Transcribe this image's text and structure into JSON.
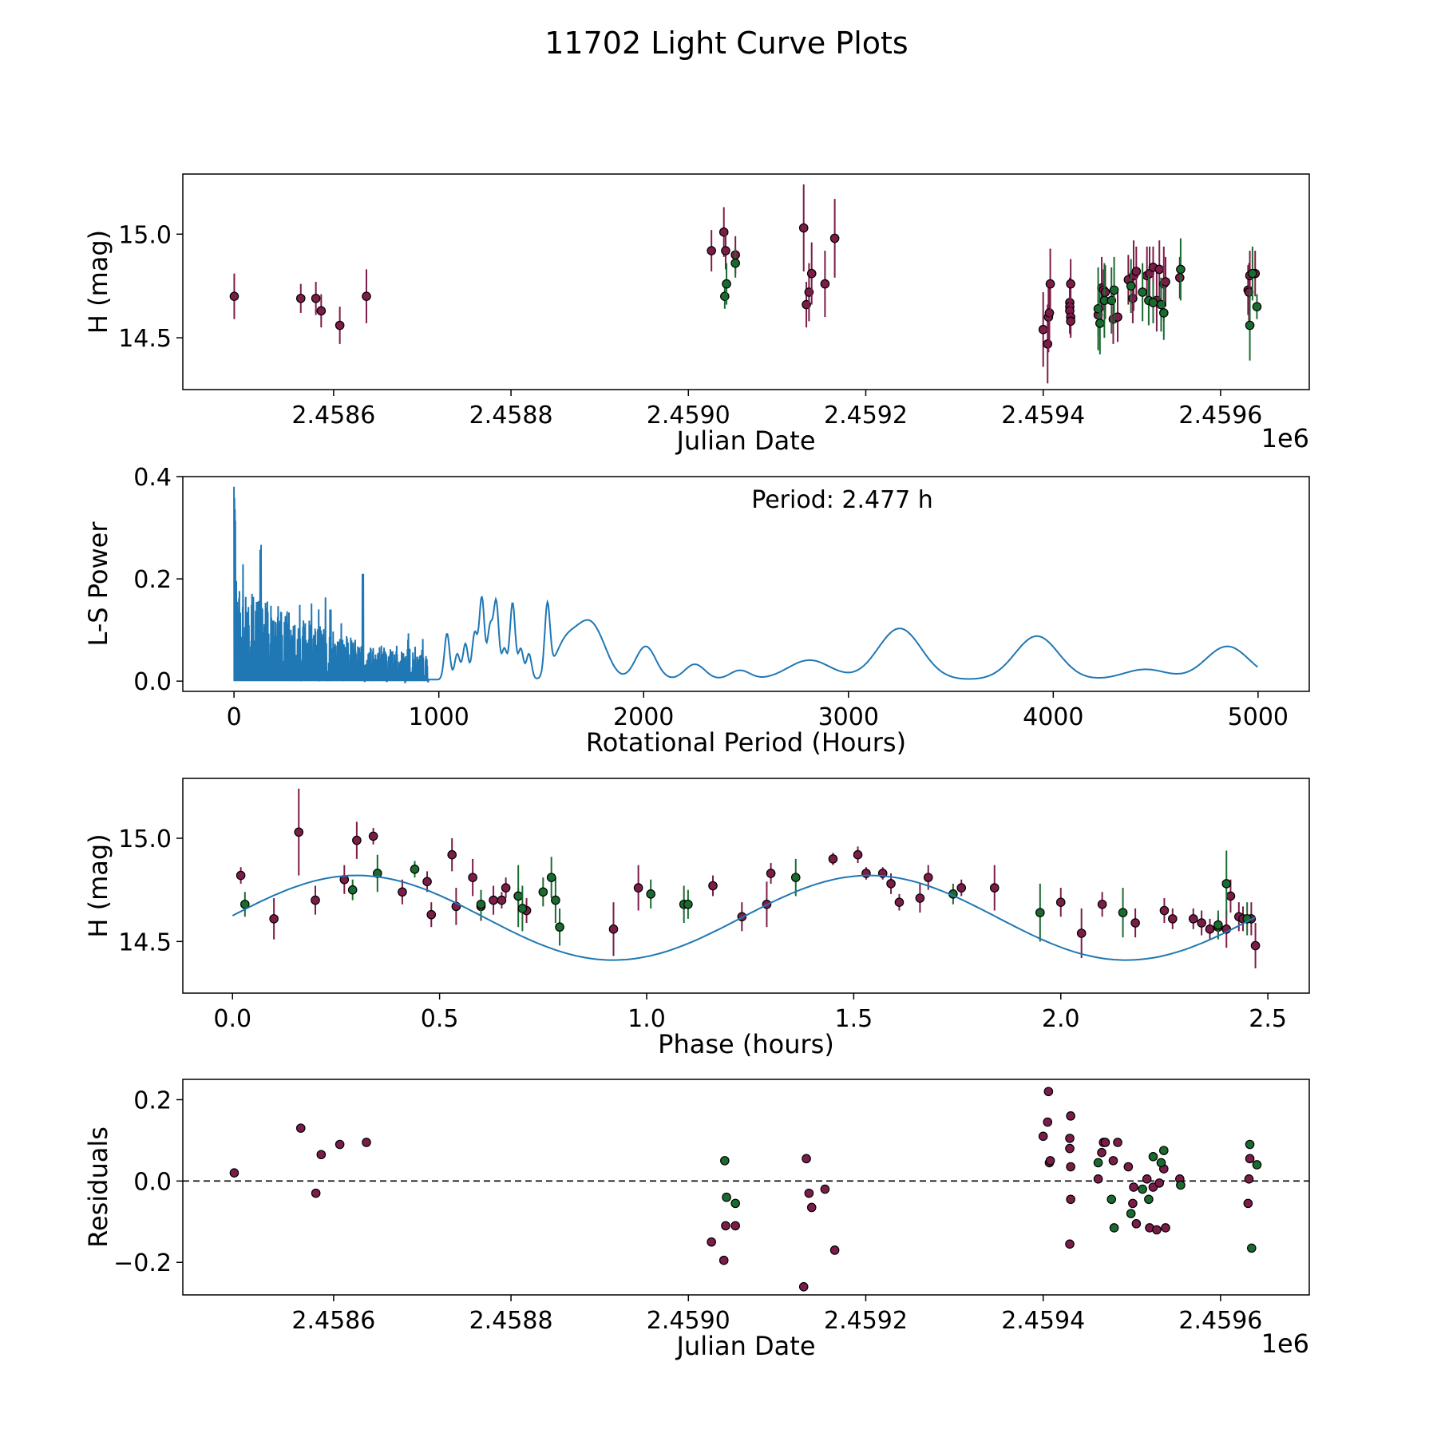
{
  "figure_title": "11702 Light Curve Plots",
  "colors": {
    "observed": "#7b1d48",
    "alt_observed": "#1a6b30",
    "model": "#1f77b4",
    "edge": "#000000",
    "zero_line": "#000000"
  },
  "chart_data": [
    {
      "id": "lightcurve",
      "type": "scatter",
      "xlabel": "Julian Date",
      "ylabel": "H (mag)",
      "x_offset_label": "1e6",
      "xlim": [
        2.45843,
        2.4597
      ],
      "ylim": [
        14.25,
        15.29
      ],
      "xticks": [
        2.4586,
        2.4588,
        2.459,
        2.4592,
        2.4594,
        2.4596
      ],
      "xtick_labels": [
        "2.4586",
        "2.4588",
        "2.4590",
        "2.4592",
        "2.4594",
        "2.4596"
      ],
      "yticks": [
        14.5,
        15.0
      ],
      "ytick_labels": [
        "14.5",
        "15.0"
      ],
      "series": [
        {
          "name": "observed",
          "color_key": "observed",
          "x": [
            2.458488,
            2.458563,
            2.45858,
            2.458586,
            2.458607,
            2.458637,
            2.459026,
            2.45904,
            2.459042,
            2.459053,
            2.45913,
            2.459133,
            2.459136,
            2.459139,
            2.459154,
            2.459165,
            2.4594,
            2.459405,
            2.459406,
            2.459407,
            2.459408,
            2.45943,
            2.45943,
            2.45943,
            2.459431,
            2.459431,
            2.459431,
            2.459462,
            2.459466,
            2.459468,
            2.45947,
            2.459479,
            2.459484,
            2.459496,
            2.459501,
            2.459502,
            2.459505,
            2.459517,
            2.45952,
            2.459524,
            2.459528,
            2.459531,
            2.459536,
            2.459538,
            2.459554,
            2.459631,
            2.459632,
            2.459633,
            2.459639
          ],
          "y": [
            14.7,
            14.69,
            14.69,
            14.63,
            14.56,
            14.7,
            14.92,
            15.01,
            14.92,
            14.9,
            15.03,
            14.66,
            14.72,
            14.81,
            14.76,
            14.98,
            14.54,
            14.47,
            14.6,
            14.62,
            14.76,
            14.67,
            14.65,
            14.63,
            14.6,
            14.58,
            14.76,
            14.61,
            14.74,
            14.73,
            14.72,
            14.59,
            14.6,
            14.78,
            14.69,
            14.8,
            14.82,
            14.8,
            14.81,
            14.84,
            14.68,
            14.83,
            14.76,
            14.77,
            14.79,
            14.73,
            14.72,
            14.8,
            14.81
          ],
          "err": [
            0.11,
            0.07,
            0.08,
            0.08,
            0.09,
            0.13,
            0.1,
            0.12,
            0.09,
            0.09,
            0.21,
            0.11,
            0.14,
            0.15,
            0.16,
            0.19,
            0.18,
            0.19,
            0.17,
            0.14,
            0.17,
            0.12,
            0.11,
            0.11,
            0.09,
            0.08,
            0.12,
            0.1,
            0.15,
            0.1,
            0.13,
            0.12,
            0.12,
            0.12,
            0.12,
            0.17,
            0.12,
            0.14,
            0.13,
            0.1,
            0.15,
            0.14,
            0.18,
            0.12,
            0.1,
            0.12,
            0.14,
            0.12,
            0.11
          ]
        },
        {
          "name": "alt_observed",
          "color_key": "alt_observed",
          "x": [
            2.459041,
            2.459043,
            2.459053,
            2.459462,
            2.459464,
            2.459469,
            2.459477,
            2.45948,
            2.459499,
            2.459512,
            2.459519,
            2.459524,
            2.459533,
            2.459536,
            2.459555,
            2.459633,
            2.459636,
            2.459641
          ],
          "y": [
            14.7,
            14.76,
            14.86,
            14.64,
            14.57,
            14.68,
            14.68,
            14.73,
            14.75,
            14.72,
            14.68,
            14.67,
            14.66,
            14.62,
            14.83,
            14.56,
            14.81,
            14.65
          ],
          "err": [
            0.06,
            0.1,
            0.07,
            0.2,
            0.15,
            0.18,
            0.16,
            0.16,
            0.13,
            0.14,
            0.12,
            0.1,
            0.13,
            0.13,
            0.15,
            0.17,
            0.13,
            0.06
          ]
        }
      ]
    },
    {
      "id": "periodogram",
      "type": "line",
      "xlabel": "Rotational Period (Hours)",
      "ylabel": "L-S Power",
      "annotation": "Period: 2.477 h",
      "xlim": [
        -250,
        5250
      ],
      "ylim": [
        -0.02,
        0.4
      ],
      "xticks": [
        0,
        1000,
        2000,
        3000,
        4000,
        5000
      ],
      "xtick_labels": [
        "0",
        "1000",
        "2000",
        "3000",
        "4000",
        "5000"
      ],
      "yticks": [
        0.0,
        0.2,
        0.4
      ],
      "ytick_labels": [
        "0.0",
        "0.2",
        "0.4"
      ],
      "peaks": [
        [
          1040,
          0.09
        ],
        [
          1090,
          0.05
        ],
        [
          1130,
          0.07
        ],
        [
          1175,
          0.09
        ],
        [
          1210,
          0.16
        ],
        [
          1250,
          0.1
        ],
        [
          1280,
          0.15
        ],
        [
          1320,
          0.06
        ],
        [
          1360,
          0.15
        ],
        [
          1400,
          0.06
        ],
        [
          1440,
          0.05
        ],
        [
          1530,
          0.135
        ],
        [
          1610,
          0.06
        ],
        [
          1680,
          0.05
        ],
        [
          1740,
          0.07
        ],
        [
          1800,
          0.04
        ],
        [
          2010,
          0.065
        ],
        [
          2250,
          0.03
        ],
        [
          2470,
          0.018
        ],
        [
          2810,
          0.038
        ],
        [
          3250,
          0.1
        ],
        [
          3920,
          0.085
        ],
        [
          4450,
          0.02
        ],
        [
          4850,
          0.065
        ]
      ]
    },
    {
      "id": "phased",
      "type": "scatter",
      "xlabel": "Phase (hours)",
      "ylabel": "H (mag)",
      "xlim": [
        -0.12,
        2.6
      ],
      "ylim": [
        14.25,
        15.29
      ],
      "xticks": [
        0.0,
        0.5,
        1.0,
        1.5,
        2.0,
        2.5
      ],
      "xtick_labels": [
        "0.0",
        "0.5",
        "1.0",
        "1.5",
        "2.0",
        "2.5"
      ],
      "yticks": [
        14.5,
        15.0
      ],
      "ytick_labels": [
        "14.5",
        "15.0"
      ],
      "model": {
        "period": 2.477,
        "mean": 14.615,
        "amplitude": 0.205,
        "phase0": 0.3
      },
      "series": [
        {
          "name": "observed",
          "color_key": "observed",
          "x": [
            0.02,
            0.1,
            0.16,
            0.2,
            0.27,
            0.3,
            0.34,
            0.41,
            0.47,
            0.48,
            0.53,
            0.54,
            0.58,
            0.6,
            0.63,
            0.65,
            0.66,
            0.69,
            0.71,
            0.92,
            0.98,
            1.16,
            1.23,
            1.29,
            1.3,
            1.45,
            1.51,
            1.53,
            1.57,
            1.59,
            1.61,
            1.66,
            1.68,
            1.76,
            1.84,
            2.0,
            2.05,
            2.1,
            2.18,
            2.25,
            2.27,
            2.32,
            2.34,
            2.36,
            2.38,
            2.4,
            2.41,
            2.43,
            2.44,
            2.46,
            2.47
          ],
          "y": [
            14.82,
            14.61,
            15.03,
            14.7,
            14.8,
            14.99,
            15.01,
            14.74,
            14.79,
            14.63,
            14.92,
            14.67,
            14.81,
            14.67,
            14.7,
            14.7,
            14.76,
            14.72,
            14.65,
            14.56,
            14.76,
            14.77,
            14.62,
            14.68,
            14.83,
            14.9,
            14.92,
            14.83,
            14.83,
            14.78,
            14.69,
            14.71,
            14.81,
            14.76,
            14.76,
            14.69,
            14.54,
            14.68,
            14.59,
            14.65,
            14.61,
            14.61,
            14.59,
            14.56,
            14.57,
            14.56,
            14.72,
            14.62,
            14.61,
            14.61,
            14.48
          ],
          "err": [
            0.04,
            0.1,
            0.21,
            0.07,
            0.07,
            0.09,
            0.04,
            0.06,
            0.05,
            0.06,
            0.08,
            0.09,
            0.09,
            0.07,
            0.07,
            0.04,
            0.05,
            0.04,
            0.06,
            0.13,
            0.11,
            0.05,
            0.07,
            0.11,
            0.05,
            0.03,
            0.04,
            0.03,
            0.03,
            0.05,
            0.04,
            0.07,
            0.06,
            0.04,
            0.11,
            0.07,
            0.12,
            0.06,
            0.07,
            0.06,
            0.05,
            0.05,
            0.06,
            0.05,
            0.05,
            0.09,
            0.08,
            0.07,
            0.06,
            0.08,
            0.11
          ]
        },
        {
          "name": "alt_observed",
          "color_key": "alt_observed",
          "x": [
            0.03,
            0.29,
            0.35,
            0.44,
            0.6,
            0.69,
            0.7,
            0.75,
            0.78,
            0.77,
            0.79,
            1.01,
            1.09,
            1.1,
            1.36,
            1.74,
            1.95,
            2.15,
            2.38,
            2.4,
            2.45
          ],
          "y": [
            14.68,
            14.75,
            14.83,
            14.85,
            14.68,
            14.72,
            14.66,
            14.74,
            14.7,
            14.81,
            14.57,
            14.73,
            14.68,
            14.68,
            14.81,
            14.73,
            14.64,
            14.64,
            14.58,
            14.78,
            14.61
          ],
          "err": [
            0.06,
            0.05,
            0.09,
            0.04,
            0.07,
            0.15,
            0.11,
            0.07,
            0.11,
            0.1,
            0.09,
            0.07,
            0.09,
            0.07,
            0.09,
            0.05,
            0.14,
            0.12,
            0.07,
            0.16,
            0.08
          ]
        }
      ]
    },
    {
      "id": "residuals",
      "type": "scatter",
      "xlabel": "Julian Date",
      "ylabel": "Residuals",
      "x_offset_label": "1e6",
      "xlim": [
        2.45843,
        2.4597
      ],
      "ylim": [
        -0.28,
        0.25
      ],
      "xticks": [
        2.4586,
        2.4588,
        2.459,
        2.4592,
        2.4594,
        2.4596
      ],
      "xtick_labels": [
        "2.4586",
        "2.4588",
        "2.4590",
        "2.4592",
        "2.4594",
        "2.4596"
      ],
      "yticks": [
        -0.2,
        0.0,
        0.2
      ],
      "ytick_labels": [
        "−0.2",
        "0.0",
        "0.2"
      ],
      "series": [
        {
          "name": "observed",
          "color_key": "observed",
          "x": [
            2.458488,
            2.458563,
            2.45858,
            2.458586,
            2.458607,
            2.458637,
            2.459026,
            2.45904,
            2.459042,
            2.459053,
            2.45913,
            2.459133,
            2.459136,
            2.459139,
            2.459154,
            2.459165,
            2.4594,
            2.459405,
            2.459406,
            2.459407,
            2.459408,
            2.45943,
            2.45943,
            2.45943,
            2.459431,
            2.459431,
            2.459431,
            2.459462,
            2.459466,
            2.459468,
            2.45947,
            2.459479,
            2.459484,
            2.459496,
            2.459501,
            2.459502,
            2.459505,
            2.459517,
            2.45952,
            2.459524,
            2.459528,
            2.459531,
            2.459536,
            2.459538,
            2.459554,
            2.459631,
            2.459632,
            2.459633
          ],
          "y": [
            0.02,
            0.13,
            -0.03,
            0.065,
            0.09,
            0.095,
            -0.15,
            -0.195,
            -0.11,
            -0.11,
            -0.26,
            0.055,
            -0.03,
            -0.065,
            -0.02,
            -0.17,
            0.11,
            0.145,
            0.22,
            0.045,
            0.05,
            -0.155,
            0.105,
            0.08,
            0.035,
            0.16,
            -0.045,
            0.005,
            0.07,
            0.095,
            0.095,
            0.05,
            0.095,
            0.035,
            -0.055,
            -0.015,
            -0.105,
            0.005,
            -0.115,
            -0.015,
            -0.12,
            -0.005,
            0.03,
            -0.115,
            0.005,
            -0.055,
            0.005,
            0.055
          ],
          "err": []
        },
        {
          "name": "alt_observed",
          "color_key": "alt_observed",
          "x": [
            2.459041,
            2.459043,
            2.459053,
            2.459462,
            2.459477,
            2.45948,
            2.459499,
            2.459512,
            2.459519,
            2.459524,
            2.459533,
            2.459536,
            2.459555,
            2.459633,
            2.459641,
            2.459635
          ],
          "y": [
            0.05,
            -0.04,
            -0.055,
            0.045,
            -0.045,
            -0.115,
            -0.08,
            -0.02,
            -0.045,
            0.06,
            0.045,
            0.075,
            -0.01,
            0.09,
            0.04,
            -0.165
          ],
          "err": []
        }
      ]
    }
  ]
}
